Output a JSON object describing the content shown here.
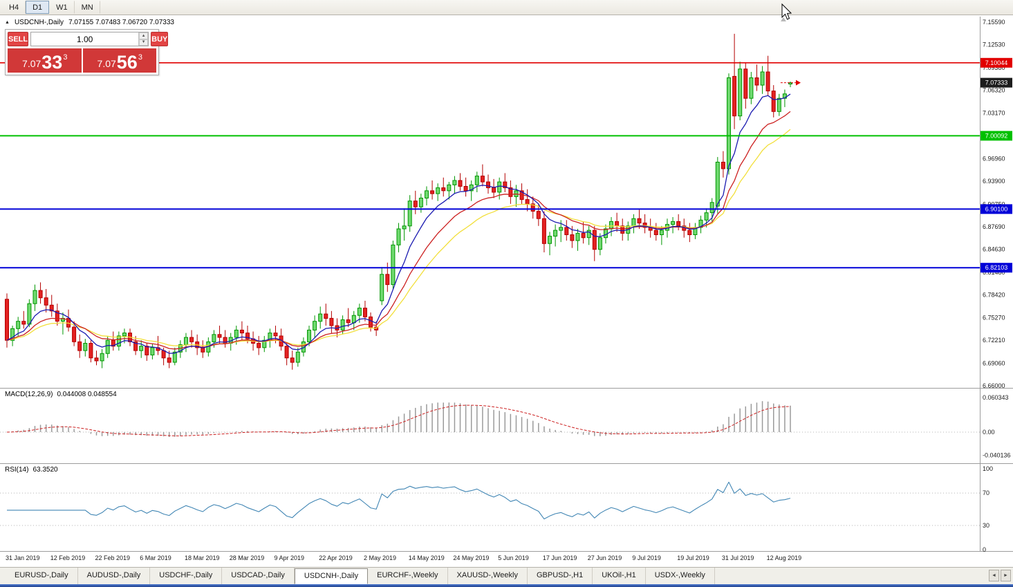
{
  "toolbar": {
    "timeframes": [
      {
        "label": "H4",
        "active": false
      },
      {
        "label": "D1",
        "active": true
      },
      {
        "label": "W1",
        "active": false
      },
      {
        "label": "MN",
        "active": false
      }
    ]
  },
  "chart_header": {
    "symbol_period": "USDCNH-,Daily",
    "ohlc_text": "7.07155 7.07483 7.06720 7.07333"
  },
  "trade_panel": {
    "sell_label": "SELL",
    "buy_label": "BUY",
    "volume": "1.00",
    "sell_price": {
      "big": "7.07",
      "pips": "33",
      "sup": "3"
    },
    "buy_price": {
      "big": "7.07",
      "pips": "56",
      "sup": "3"
    }
  },
  "price_axis": {
    "labels": [
      "7.15590",
      "7.12530",
      "7.09380",
      "7.06320",
      "7.03170",
      "7.00020",
      "6.96960",
      "6.93900",
      "6.90750",
      "6.87690",
      "6.84630",
      "6.81480",
      "6.78420",
      "6.75270",
      "6.72210",
      "6.69060",
      "6.66000"
    ]
  },
  "current_price": {
    "label": "7.07333",
    "value": 7.07333
  },
  "levels": [
    {
      "label": "7.10044",
      "value": 7.10044,
      "color": "#e10000",
      "width": 1.6
    },
    {
      "label": "7.00092",
      "value": 7.00092,
      "color": "#00c000",
      "width": 2
    },
    {
      "label": "6.90100",
      "value": 6.901,
      "color": "#0000d8",
      "width": 2
    },
    {
      "label": "6.82103",
      "value": 6.82103,
      "color": "#0000d8",
      "width": 2
    }
  ],
  "macd_panel": {
    "name": "MACD(12,26,9)",
    "values_text": "0.044008 0.048554",
    "axis_labels": [
      {
        "label": "0.060343",
        "value": 0.060343
      },
      {
        "label": "0.00",
        "value": 0
      },
      {
        "label": "-0.040136",
        "value": -0.040136
      }
    ]
  },
  "rsi_panel": {
    "name": "RSI(14)",
    "value_text": "63.3520",
    "axis_labels": [
      {
        "label": "100",
        "value": 100
      },
      {
        "label": "70",
        "value": 70
      },
      {
        "label": "30",
        "value": 30
      },
      {
        "label": "0",
        "value": 0
      }
    ],
    "dotted_levels": [
      70,
      30
    ]
  },
  "x_axis_labels": [
    "31 Jan 2019",
    "12 Feb 2019",
    "22 Feb 2019",
    "6 Mar 2019",
    "18 Mar 2019",
    "28 Mar 2019",
    "9 Apr 2019",
    "22 Apr 2019",
    "2 May 2019",
    "14 May 2019",
    "24 May 2019",
    "5 Jun 2019",
    "17 Jun 2019",
    "27 Jun 2019",
    "9 Jul 2019",
    "19 Jul 2019",
    "31 Jul 2019",
    "12 Aug 2019"
  ],
  "tabs": [
    {
      "label": "EURUSD-,Daily",
      "active": false
    },
    {
      "label": "AUDUSD-,Daily",
      "active": false
    },
    {
      "label": "USDCHF-,Daily",
      "active": false
    },
    {
      "label": "USDCAD-,Daily",
      "active": false
    },
    {
      "label": "USDCNH-,Daily",
      "active": true
    },
    {
      "label": "EURCHF-,Weekly",
      "active": false
    },
    {
      "label": "XAUUSD-,Weekly",
      "active": false
    },
    {
      "label": "GBPUSD-,H1",
      "active": false
    },
    {
      "label": "UKOil-,H1",
      "active": false
    },
    {
      "label": "USDX-,Weekly",
      "active": false
    }
  ],
  "tab_scroll": {
    "left": "◄",
    "right": "►"
  },
  "colors": {
    "bull_fill": "#70d970",
    "bull_border": "#009600",
    "bear_fill": "#e32222",
    "bear_border": "#b40000",
    "ma_fast": "#1a1ab0",
    "ma_mid": "#cc2020",
    "ma_slow": "#f2df3a",
    "macd_hist": "#9a9a9a",
    "macd_signal": "#cc2020",
    "rsi_line": "#4186b4",
    "level_red": "#e10000",
    "level_green": "#00c000",
    "level_blue": "#0000d8",
    "current_badge": "#1c1c1c"
  },
  "chart_data": {
    "type": "candlestick",
    "title": "USDCNH-,Daily",
    "symbol": "USDCNH",
    "period": "Daily",
    "price_range": [
      6.66,
      7.1559
    ],
    "x_label_step": 8,
    "ohlc_current": {
      "open": 7.07155,
      "high": 7.07483,
      "low": 7.0672,
      "close": 7.07333
    },
    "horizontal_levels": [
      7.10044,
      7.00092,
      6.901,
      6.82103
    ],
    "candles": [
      [
        6.778,
        6.786,
        6.712,
        6.722
      ],
      [
        6.722,
        6.742,
        6.714,
        6.738
      ],
      [
        6.738,
        6.754,
        6.728,
        6.748
      ],
      [
        6.748,
        6.762,
        6.738,
        6.744
      ],
      [
        6.744,
        6.778,
        6.74,
        6.772
      ],
      [
        6.772,
        6.798,
        6.762,
        6.79
      ],
      [
        6.79,
        6.801,
        6.772,
        6.78
      ],
      [
        6.78,
        6.792,
        6.76,
        6.77
      ],
      [
        6.77,
        6.784,
        6.754,
        6.762
      ],
      [
        6.762,
        6.772,
        6.742,
        6.748
      ],
      [
        6.748,
        6.76,
        6.73,
        6.752
      ],
      [
        6.752,
        6.764,
        6.734,
        6.74
      ],
      [
        6.74,
        6.748,
        6.714,
        6.72
      ],
      [
        6.72,
        6.73,
        6.698,
        6.708
      ],
      [
        6.708,
        6.724,
        6.7,
        6.718
      ],
      [
        6.718,
        6.722,
        6.692,
        6.698
      ],
      [
        6.698,
        6.708,
        6.688,
        6.694
      ],
      [
        6.694,
        6.71,
        6.684,
        6.704
      ],
      [
        6.704,
        6.728,
        6.698,
        6.722
      ],
      [
        6.722,
        6.734,
        6.708,
        6.714
      ],
      [
        6.714,
        6.734,
        6.708,
        6.728
      ],
      [
        6.728,
        6.738,
        6.718,
        6.732
      ],
      [
        6.732,
        6.738,
        6.714,
        6.72
      ],
      [
        6.72,
        6.728,
        6.702,
        6.708
      ],
      [
        6.708,
        6.722,
        6.698,
        6.714
      ],
      [
        6.714,
        6.718,
        6.694,
        6.702
      ],
      [
        6.702,
        6.718,
        6.696,
        6.712
      ],
      [
        6.712,
        6.728,
        6.702,
        6.708
      ],
      [
        6.708,
        6.712,
        6.688,
        6.698
      ],
      [
        6.698,
        6.708,
        6.684,
        6.692
      ],
      [
        6.692,
        6.712,
        6.688,
        6.706
      ],
      [
        6.706,
        6.722,
        6.698,
        6.716
      ],
      [
        6.716,
        6.732,
        6.706,
        6.726
      ],
      [
        6.726,
        6.736,
        6.712,
        6.72
      ],
      [
        6.72,
        6.73,
        6.702,
        6.712
      ],
      [
        6.712,
        6.722,
        6.698,
        6.706
      ],
      [
        6.706,
        6.726,
        6.7,
        6.72
      ],
      [
        6.72,
        6.736,
        6.712,
        6.73
      ],
      [
        6.73,
        6.742,
        6.718,
        6.726
      ],
      [
        6.726,
        6.736,
        6.712,
        6.718
      ],
      [
        6.718,
        6.732,
        6.708,
        6.726
      ],
      [
        6.726,
        6.742,
        6.716,
        6.736
      ],
      [
        6.736,
        6.748,
        6.722,
        6.732
      ],
      [
        6.732,
        6.742,
        6.718,
        6.724
      ],
      [
        6.724,
        6.734,
        6.708,
        6.718
      ],
      [
        6.718,
        6.728,
        6.702,
        6.712
      ],
      [
        6.712,
        6.728,
        6.706,
        6.722
      ],
      [
        6.722,
        6.738,
        6.712,
        6.732
      ],
      [
        6.732,
        6.742,
        6.718,
        6.728
      ],
      [
        6.728,
        6.738,
        6.708,
        6.714
      ],
      [
        6.714,
        6.718,
        6.688,
        6.698
      ],
      [
        6.698,
        6.708,
        6.682,
        6.692
      ],
      [
        6.692,
        6.712,
        6.686,
        6.706
      ],
      [
        6.706,
        6.726,
        6.7,
        6.72
      ],
      [
        6.72,
        6.742,
        6.714,
        6.736
      ],
      [
        6.736,
        6.756,
        6.726,
        6.748
      ],
      [
        6.748,
        6.768,
        6.738,
        6.758
      ],
      [
        6.758,
        6.772,
        6.742,
        6.752
      ],
      [
        6.752,
        6.762,
        6.732,
        6.742
      ],
      [
        6.742,
        6.752,
        6.726,
        6.736
      ],
      [
        6.736,
        6.756,
        6.73,
        6.75
      ],
      [
        6.75,
        6.766,
        6.74,
        6.746
      ],
      [
        6.746,
        6.762,
        6.736,
        6.756
      ],
      [
        6.756,
        6.772,
        6.746,
        6.766
      ],
      [
        6.766,
        6.776,
        6.748,
        6.754
      ],
      [
        6.754,
        6.76,
        6.734,
        6.74
      ],
      [
        6.74,
        6.748,
        6.728,
        6.736
      ],
      [
        6.776,
        6.822,
        6.77,
        6.812
      ],
      [
        6.812,
        6.828,
        6.788,
        6.798
      ],
      [
        6.798,
        6.858,
        6.792,
        6.852
      ],
      [
        6.852,
        6.882,
        6.842,
        6.874
      ],
      [
        6.874,
        6.902,
        6.858,
        6.878
      ],
      [
        6.878,
        6.92,
        6.87,
        6.912
      ],
      [
        6.912,
        6.926,
        6.894,
        6.904
      ],
      [
        6.904,
        6.922,
        6.896,
        6.916
      ],
      [
        6.916,
        6.932,
        6.906,
        6.926
      ],
      [
        6.926,
        6.94,
        6.914,
        6.922
      ],
      [
        6.922,
        6.936,
        6.912,
        6.93
      ],
      [
        6.93,
        6.944,
        6.918,
        6.926
      ],
      [
        6.926,
        6.938,
        6.914,
        6.934
      ],
      [
        6.934,
        6.946,
        6.922,
        6.94
      ],
      [
        6.94,
        6.95,
        6.926,
        6.932
      ],
      [
        6.932,
        6.944,
        6.918,
        6.926
      ],
      [
        6.926,
        6.94,
        6.912,
        6.934
      ],
      [
        6.934,
        6.952,
        6.924,
        6.946
      ],
      [
        6.946,
        6.962,
        6.932,
        6.938
      ],
      [
        6.938,
        6.948,
        6.922,
        6.93
      ],
      [
        6.93,
        6.942,
        6.916,
        6.924
      ],
      [
        6.924,
        6.944,
        6.914,
        6.938
      ],
      [
        6.938,
        6.95,
        6.924,
        6.93
      ],
      [
        6.93,
        6.94,
        6.908,
        6.918
      ],
      [
        6.918,
        6.934,
        6.904,
        6.926
      ],
      [
        6.926,
        6.936,
        6.908,
        6.914
      ],
      [
        6.914,
        6.928,
        6.898,
        6.908
      ],
      [
        6.908,
        6.918,
        6.888,
        6.898
      ],
      [
        6.898,
        6.908,
        6.878,
        6.888
      ],
      [
        6.888,
        6.898,
        6.842,
        6.854
      ],
      [
        6.854,
        6.87,
        6.838,
        6.864
      ],
      [
        6.864,
        6.88,
        6.85,
        6.872
      ],
      [
        6.872,
        6.886,
        6.856,
        6.876
      ],
      [
        6.876,
        6.886,
        6.858,
        6.866
      ],
      [
        6.866,
        6.878,
        6.848,
        6.858
      ],
      [
        6.858,
        6.874,
        6.844,
        6.868
      ],
      [
        6.868,
        6.884,
        6.854,
        6.862
      ],
      [
        6.862,
        6.878,
        6.852,
        6.872
      ],
      [
        6.872,
        6.878,
        6.83,
        6.846
      ],
      [
        6.846,
        6.868,
        6.838,
        6.862
      ],
      [
        6.862,
        6.88,
        6.854,
        6.874
      ],
      [
        6.874,
        6.89,
        6.864,
        6.884
      ],
      [
        6.884,
        6.896,
        6.87,
        6.878
      ],
      [
        6.878,
        6.888,
        6.858,
        6.868
      ],
      [
        6.868,
        6.884,
        6.858,
        6.878
      ],
      [
        6.878,
        6.894,
        6.868,
        6.888
      ],
      [
        6.888,
        6.9,
        6.874,
        6.882
      ],
      [
        6.882,
        6.894,
        6.868,
        6.876
      ],
      [
        6.876,
        6.888,
        6.862,
        6.872
      ],
      [
        6.872,
        6.882,
        6.858,
        6.866
      ],
      [
        6.866,
        6.878,
        6.852,
        6.872
      ],
      [
        6.872,
        6.888,
        6.862,
        6.88
      ],
      [
        6.88,
        6.89,
        6.868,
        6.884
      ],
      [
        6.884,
        6.894,
        6.872,
        6.878
      ],
      [
        6.878,
        6.888,
        6.862,
        6.872
      ],
      [
        6.872,
        6.882,
        6.856,
        6.866
      ],
      [
        6.866,
        6.882,
        6.86,
        6.876
      ],
      [
        6.876,
        6.892,
        6.868,
        6.886
      ],
      [
        6.886,
        6.902,
        6.876,
        6.896
      ],
      [
        6.896,
        6.916,
        6.884,
        6.91
      ],
      [
        6.905,
        6.972,
        6.895,
        6.965
      ],
      [
        6.965,
        6.98,
        6.944,
        6.956
      ],
      [
        6.956,
        7.086,
        6.948,
        7.08
      ],
      [
        7.082,
        7.14,
        7.01,
        7.028
      ],
      [
        7.028,
        7.102,
        7.022,
        7.092
      ],
      [
        7.092,
        7.1,
        7.038,
        7.052
      ],
      [
        7.052,
        7.088,
        7.044,
        7.08
      ],
      [
        7.08,
        7.098,
        7.062,
        7.07
      ],
      [
        7.07,
        7.096,
        7.058,
        7.088
      ],
      [
        7.088,
        7.11,
        7.056,
        7.062
      ],
      [
        7.062,
        7.07,
        7.026,
        7.034
      ],
      [
        7.034,
        7.058,
        7.028,
        7.052
      ],
      [
        7.052,
        7.064,
        7.04,
        7.058
      ],
      [
        7.07155,
        7.07483,
        7.0672,
        7.07333
      ]
    ],
    "moving_averages": [
      {
        "type": "ema",
        "period": 7,
        "color_key": "ma_fast"
      },
      {
        "type": "ema",
        "period": 14,
        "color_key": "ma_mid"
      },
      {
        "type": "ema",
        "period": 21,
        "color_key": "ma_slow"
      }
    ],
    "indicators": {
      "macd": {
        "fast": 12,
        "slow": 26,
        "signal": 9,
        "current": [
          0.044008,
          0.048554
        ]
      },
      "rsi": {
        "period": 14,
        "current": 63.352
      }
    }
  }
}
